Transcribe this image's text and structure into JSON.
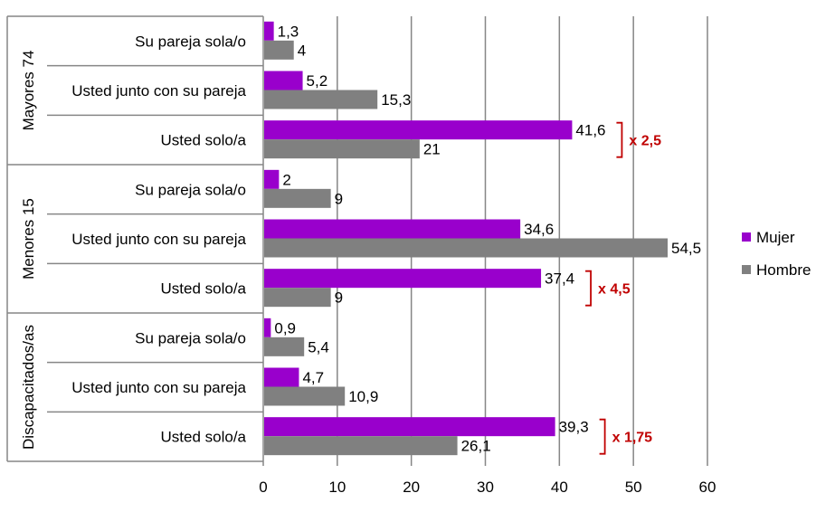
{
  "chart_data": {
    "type": "bar",
    "orientation": "horizontal",
    "groups": [
      {
        "label": "Mayores 74",
        "categories": [
          "Su pareja sola/o",
          "Usted junto con su pareja",
          "Usted solo/a"
        ],
        "annotation": "x 2,5"
      },
      {
        "label": "Menores 15",
        "categories": [
          "Su pareja sola/o",
          "Usted junto con su pareja",
          "Usted solo/a"
        ],
        "annotation": "x 4,5"
      },
      {
        "label": "Discapacitados/as",
        "categories": [
          "Su pareja sola/o",
          "Usted junto con su pareja",
          "Usted solo/a"
        ],
        "annotation": "x 1,75"
      }
    ],
    "series": [
      {
        "name": "Mujer",
        "color": "#9900CC",
        "values": [
          1.3,
          5.2,
          41.6,
          2,
          34.6,
          37.4,
          0.9,
          4.7,
          39.3
        ],
        "labels": [
          "1,3",
          "5,2",
          "41,6",
          "2",
          "34,6",
          "37,4",
          "0,9",
          "4,7",
          "39,3"
        ]
      },
      {
        "name": "Hombre",
        "color": "#808080",
        "values": [
          4,
          15.3,
          21,
          9,
          54.5,
          9,
          5.4,
          10.9,
          26.1
        ],
        "labels": [
          "4",
          "15,3",
          "21",
          "9",
          "54,5",
          "9",
          "5,4",
          "10,9",
          "26,1"
        ]
      }
    ],
    "xlim": [
      0,
      60
    ],
    "xticks": [
      "0",
      "10",
      "20",
      "30",
      "40",
      "50",
      "60"
    ],
    "grid": true,
    "legend": "right",
    "annotation_color": "#C00000"
  }
}
